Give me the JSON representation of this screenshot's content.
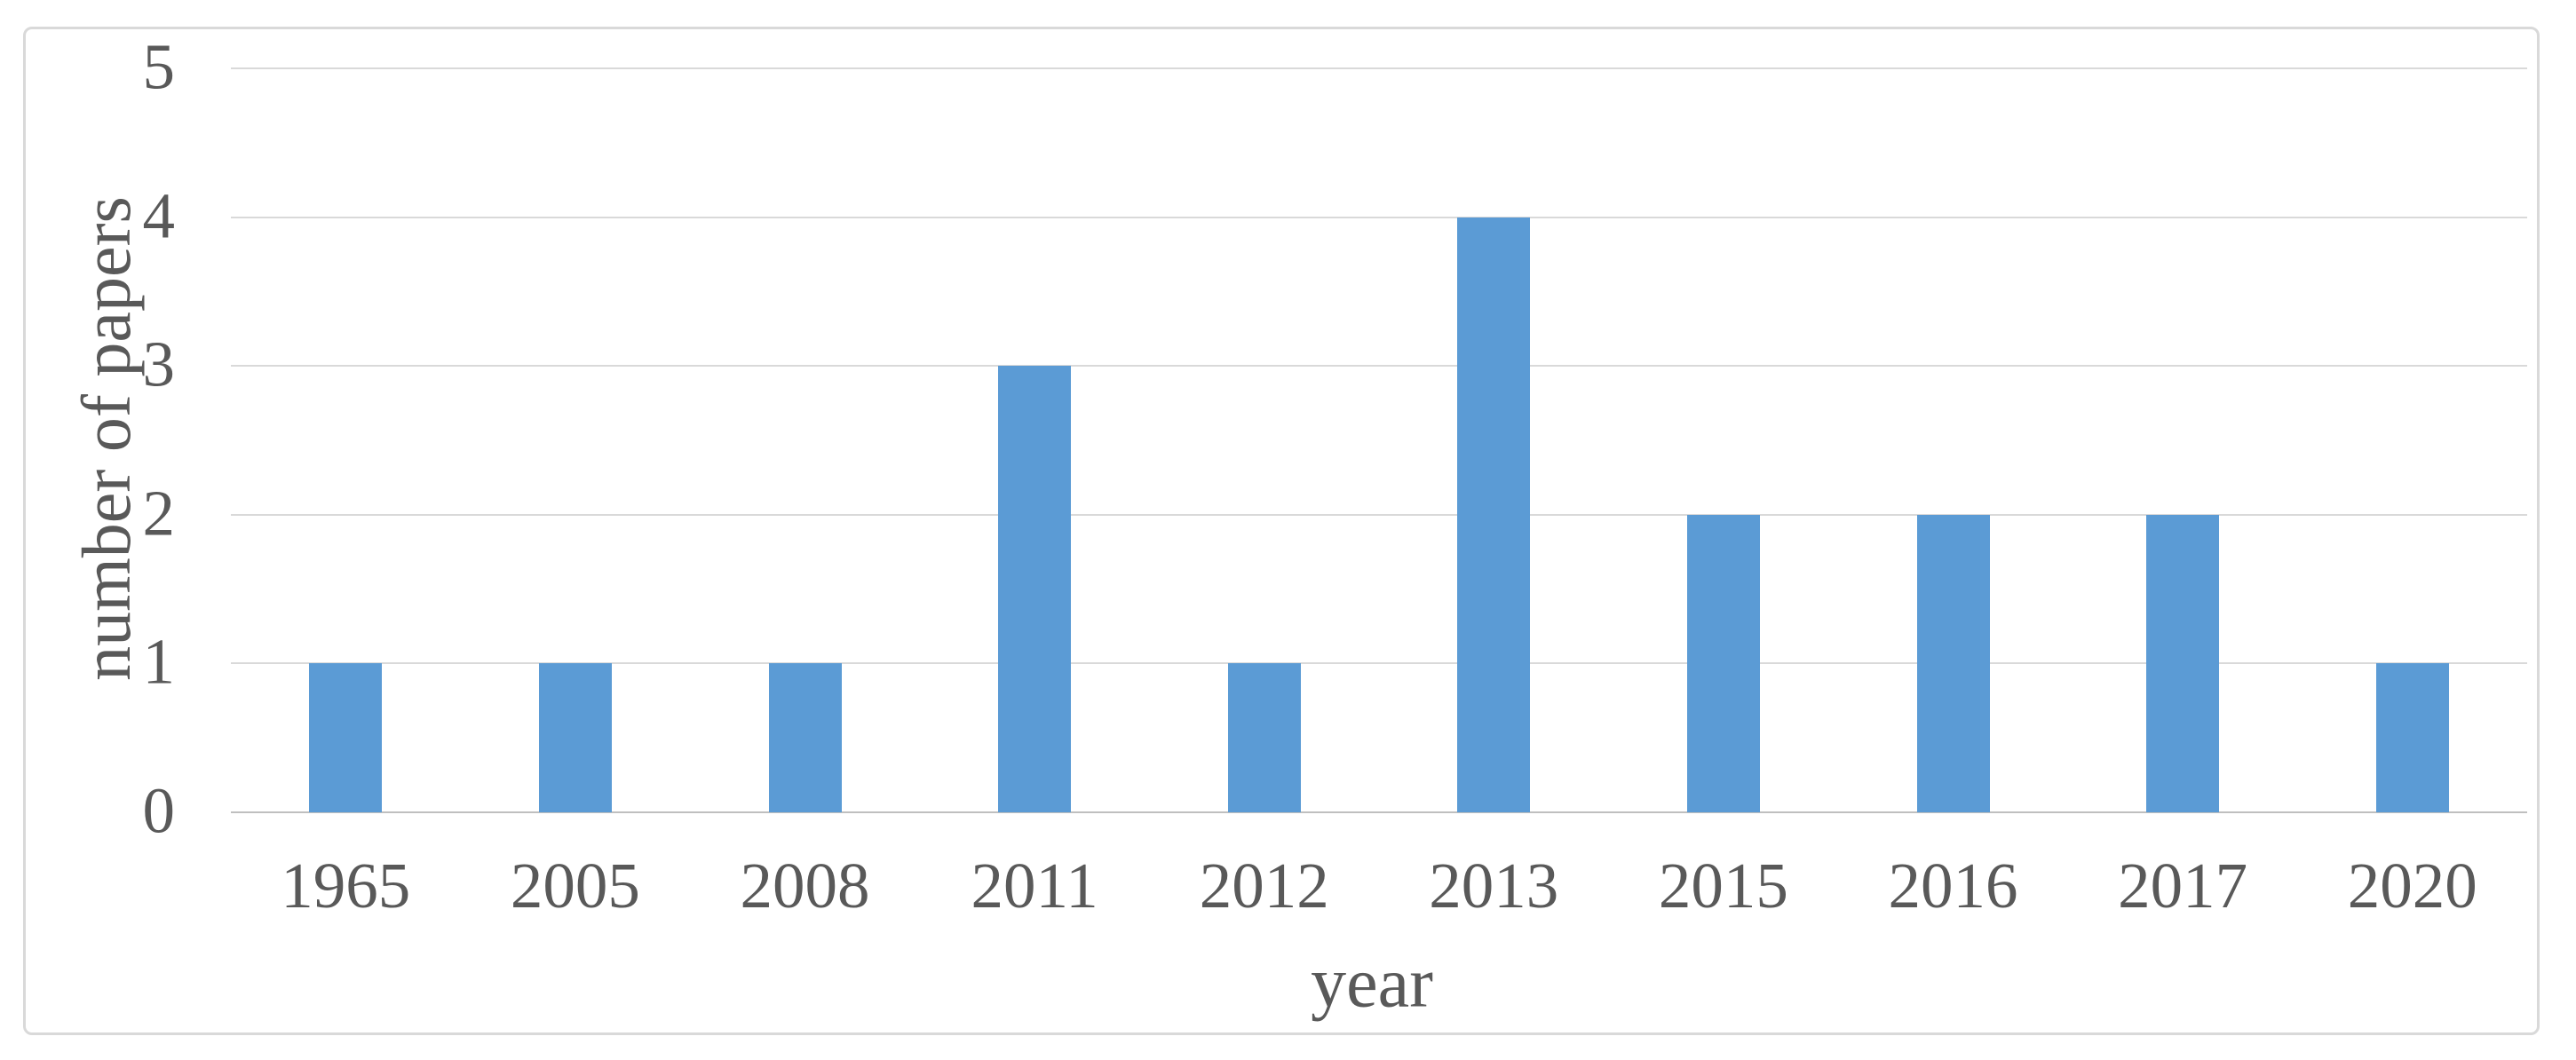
{
  "chart_data": {
    "type": "bar",
    "title": "",
    "categories": [
      "1965",
      "2005",
      "2008",
      "2011",
      "2012",
      "2013",
      "2015",
      "2016",
      "2017",
      "2020"
    ],
    "values": [
      1,
      1,
      1,
      3,
      1,
      4,
      2,
      2,
      2,
      1
    ],
    "xlabel": "year",
    "ylabel": "number of papers",
    "ylim": [
      0,
      5
    ],
    "yticks": [
      0,
      1,
      2,
      3,
      4,
      5
    ],
    "grid": "horizontal",
    "legend": "none",
    "colors": {
      "bar": "#5B9BD5",
      "text": "#595959",
      "gridline": "#D9D9D9",
      "axis_line": "#BFBFBF",
      "border": "#D9D9D9",
      "background": "#FFFFFF"
    }
  }
}
